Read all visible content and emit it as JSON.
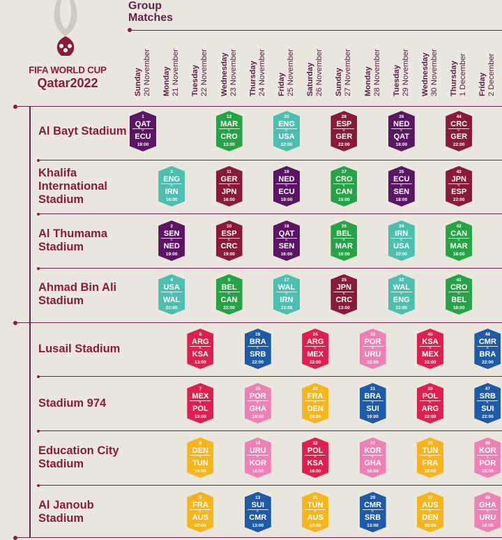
{
  "header": {
    "title_line1": "Group",
    "title_line2": "Matches"
  },
  "brand": {
    "line1": "FIFA WORLD CUP",
    "line2": "Qatar2022"
  },
  "colors": {
    "Qatar": "#5b1868",
    "Group B": "#cf2a57",
    "Group C": "#1f5fb0",
    "Group D": "#e3396a",
    "Group E": "#6b6c6e",
    "purple": "#5a1565",
    "maroon": "#8a1a3a",
    "green": "#27a347",
    "teal": "#4dbfb1",
    "crimson": "#e11f4f",
    "blue": "#1d5aa8",
    "pink": "#ef80b6",
    "yellow": "#f6b61b"
  },
  "days": [
    {
      "name": "Sunday",
      "date": "20 November"
    },
    {
      "name": "Monday",
      "date": "21 November"
    },
    {
      "name": "Tuesday",
      "date": "22 November"
    },
    {
      "name": "Wednesday",
      "date": "23 November"
    },
    {
      "name": "Thursday",
      "date": "24 November"
    },
    {
      "name": "Friday",
      "date": "25 November"
    },
    {
      "name": "Saturday",
      "date": "26 November"
    },
    {
      "name": "Sunday",
      "date": "27 November"
    },
    {
      "name": "Monday",
      "date": "28 November"
    },
    {
      "name": "Tuesday",
      "date": "29 November"
    },
    {
      "name": "Wednesday",
      "date": "30 November"
    },
    {
      "name": "Thursday",
      "date": "1 December"
    },
    {
      "name": "Friday",
      "date": "2 December"
    }
  ],
  "stadiums": [
    {
      "name": "Al Bayt Stadium",
      "matches": [
        {
          "num": "1",
          "home": "QAT",
          "away": "ECU",
          "time": "19:00",
          "day": 0,
          "color": "purple"
        },
        {
          "num": "12",
          "home": "MAR",
          "away": "CRO",
          "time": "13:00",
          "day": 3,
          "color": "green"
        },
        {
          "num": "20",
          "home": "ENG",
          "away": "USA",
          "time": "22:00",
          "day": 5,
          "color": "teal"
        },
        {
          "num": "28",
          "home": "ESP",
          "away": "GER",
          "time": "22:00",
          "day": 7,
          "color": "maroon"
        },
        {
          "num": "36",
          "home": "NED",
          "away": "QAT",
          "time": "18:00",
          "day": 9,
          "color": "purple"
        },
        {
          "num": "44",
          "home": "CRC",
          "away": "GER",
          "time": "22:00",
          "day": 11,
          "color": "maroon"
        }
      ]
    },
    {
      "name": "Khalifa International Stadium",
      "matches": [
        {
          "num": "3",
          "home": "ENG",
          "away": "IRN",
          "time": "16:00",
          "day": 1,
          "color": "teal"
        },
        {
          "num": "11",
          "home": "GER",
          "away": "JPN",
          "time": "16:00",
          "day": 3,
          "color": "maroon"
        },
        {
          "num": "19",
          "home": "NED",
          "away": "ECU",
          "time": "19:00",
          "day": 5,
          "color": "purple"
        },
        {
          "num": "27",
          "home": "CRO",
          "away": "CAN",
          "time": "19:00",
          "day": 7,
          "color": "green"
        },
        {
          "num": "35",
          "home": "ECU",
          "away": "SEN",
          "time": "18:00",
          "day": 9,
          "color": "purple"
        },
        {
          "num": "43",
          "home": "JPN",
          "away": "ESP",
          "time": "22:00",
          "day": 11,
          "color": "maroon"
        }
      ]
    },
    {
      "name": "Al Thumama Stadium",
      "matches": [
        {
          "num": "2",
          "home": "SEN",
          "away": "NED",
          "time": "19:00",
          "day": 1,
          "color": "purple"
        },
        {
          "num": "10",
          "home": "ESP",
          "away": "CRC",
          "time": "19:00",
          "day": 3,
          "color": "maroon"
        },
        {
          "num": "18",
          "home": "QAT",
          "away": "SEN",
          "time": "16:00",
          "day": 5,
          "color": "purple"
        },
        {
          "num": "26",
          "home": "BEL",
          "away": "MAR",
          "time": "16:00",
          "day": 7,
          "color": "green"
        },
        {
          "num": "34",
          "home": "IRN",
          "away": "USA",
          "time": "22:00",
          "day": 9,
          "color": "teal"
        },
        {
          "num": "42",
          "home": "CAN",
          "away": "MAR",
          "time": "18:00",
          "day": 11,
          "color": "green"
        }
      ]
    },
    {
      "name": "Ahmad Bin Ali Stadium",
      "matches": [
        {
          "num": "4",
          "home": "USA",
          "away": "WAL",
          "time": "22:00",
          "day": 1,
          "color": "teal"
        },
        {
          "num": "9",
          "home": "BEL",
          "away": "CAN",
          "time": "22:00",
          "day": 3,
          "color": "green"
        },
        {
          "num": "17",
          "home": "WAL",
          "away": "IRN",
          "time": "13:00",
          "day": 5,
          "color": "teal"
        },
        {
          "num": "25",
          "home": "JPN",
          "away": "CRC",
          "time": "13:00",
          "day": 7,
          "color": "maroon"
        },
        {
          "num": "33",
          "home": "WAL",
          "away": "ENG",
          "time": "22:00",
          "day": 9,
          "color": "teal"
        },
        {
          "num": "41",
          "home": "CRO",
          "away": "BEL",
          "time": "18:00",
          "day": 11,
          "color": "green"
        }
      ]
    },
    {
      "name": "Lusail Stadium",
      "matches": [
        {
          "num": "8",
          "home": "ARG",
          "away": "KSA",
          "time": "13:00",
          "day": 2,
          "color": "crimson"
        },
        {
          "num": "16",
          "home": "BRA",
          "away": "SRB",
          "time": "22:00",
          "day": 4,
          "color": "blue"
        },
        {
          "num": "24",
          "home": "ARG",
          "away": "MEX",
          "time": "22:00",
          "day": 6,
          "color": "crimson"
        },
        {
          "num": "32",
          "home": "POR",
          "away": "URU",
          "time": "22:00",
          "day": 8,
          "color": "pink"
        },
        {
          "num": "40",
          "home": "KSA",
          "away": "MEX",
          "time": "22:00",
          "day": 10,
          "color": "crimson"
        },
        {
          "num": "48",
          "home": "CMR",
          "away": "BRA",
          "time": "22:00",
          "day": 12,
          "color": "blue"
        }
      ]
    },
    {
      "name": "Stadium 974",
      "matches": [
        {
          "num": "7",
          "home": "MEX",
          "away": "POL",
          "time": "19:00",
          "day": 2,
          "color": "crimson"
        },
        {
          "num": "15",
          "home": "POR",
          "away": "GHA",
          "time": "19:00",
          "day": 4,
          "color": "pink"
        },
        {
          "num": "23",
          "home": "FRA",
          "away": "DEN",
          "time": "19:00",
          "day": 6,
          "color": "yellow"
        },
        {
          "num": "31",
          "home": "BRA",
          "away": "SUI",
          "time": "19:00",
          "day": 8,
          "color": "blue"
        },
        {
          "num": "39",
          "home": "POL",
          "away": "ARG",
          "time": "22:00",
          "day": 10,
          "color": "crimson"
        },
        {
          "num": "47",
          "home": "SRB",
          "away": "SUI",
          "time": "22:00",
          "day": 12,
          "color": "blue"
        }
      ]
    },
    {
      "name": "Education City Stadium",
      "matches": [
        {
          "num": "6",
          "home": "DEN",
          "away": "TUN",
          "time": "16:00",
          "day": 2,
          "color": "yellow"
        },
        {
          "num": "14",
          "home": "URU",
          "away": "KOR",
          "time": "16:00",
          "day": 4,
          "color": "pink"
        },
        {
          "num": "22",
          "home": "POL",
          "away": "KSA",
          "time": "16:00",
          "day": 6,
          "color": "crimson"
        },
        {
          "num": "30",
          "home": "KOR",
          "away": "GHA",
          "time": "16:00",
          "day": 8,
          "color": "pink"
        },
        {
          "num": "38",
          "home": "TUN",
          "away": "FRA",
          "time": "18:00",
          "day": 10,
          "color": "yellow"
        },
        {
          "num": "46",
          "home": "KOR",
          "away": "POR",
          "time": "18:00",
          "day": 12,
          "color": "pink"
        }
      ]
    },
    {
      "name": "Al Janoub Stadium",
      "matches": [
        {
          "num": "5",
          "home": "FRA",
          "away": "AUS",
          "time": "22:00",
          "day": 2,
          "color": "yellow"
        },
        {
          "num": "13",
          "home": "SUI",
          "away": "CMR",
          "time": "13:00",
          "day": 4,
          "color": "blue"
        },
        {
          "num": "21",
          "home": "TUN",
          "away": "AUS",
          "time": "13:00",
          "day": 6,
          "color": "yellow"
        },
        {
          "num": "29",
          "home": "CMR",
          "away": "SRB",
          "time": "13:00",
          "day": 8,
          "color": "blue"
        },
        {
          "num": "37",
          "home": "AUS",
          "away": "DEN",
          "time": "18:00",
          "day": 10,
          "color": "yellow"
        },
        {
          "num": "45",
          "home": "GHA",
          "away": "URU",
          "time": "18:00",
          "day": 12,
          "color": "pink"
        }
      ]
    }
  ]
}
